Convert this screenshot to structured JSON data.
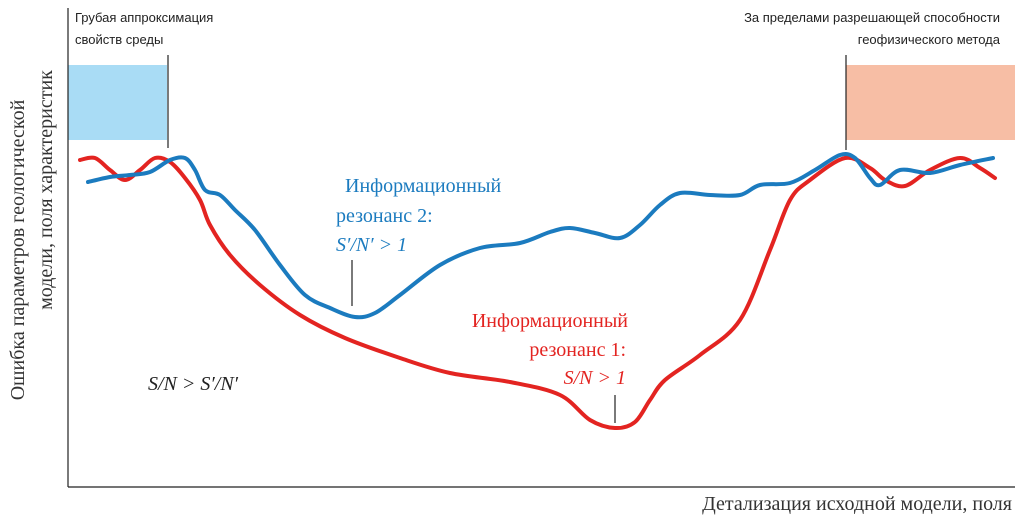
{
  "annotations": {
    "left": [
      "Грубая аппроксимация",
      "свойств среды"
    ],
    "right": [
      "За пределами разрешающей способности",
      "геофизического метода"
    ],
    "resonance2": [
      "Информационный",
      "резонанс 2:",
      "S′/N′ > 1"
    ],
    "resonance1": [
      "Информационный",
      "резонанс 1:",
      "S/N > 1"
    ],
    "comparison": "S/N > S′/N′"
  },
  "axes": {
    "y_label": [
      "Ошибка параметров геологической",
      "модели, поля характеристик"
    ],
    "x_label": "Детализация исходной модели, поля"
  }
}
